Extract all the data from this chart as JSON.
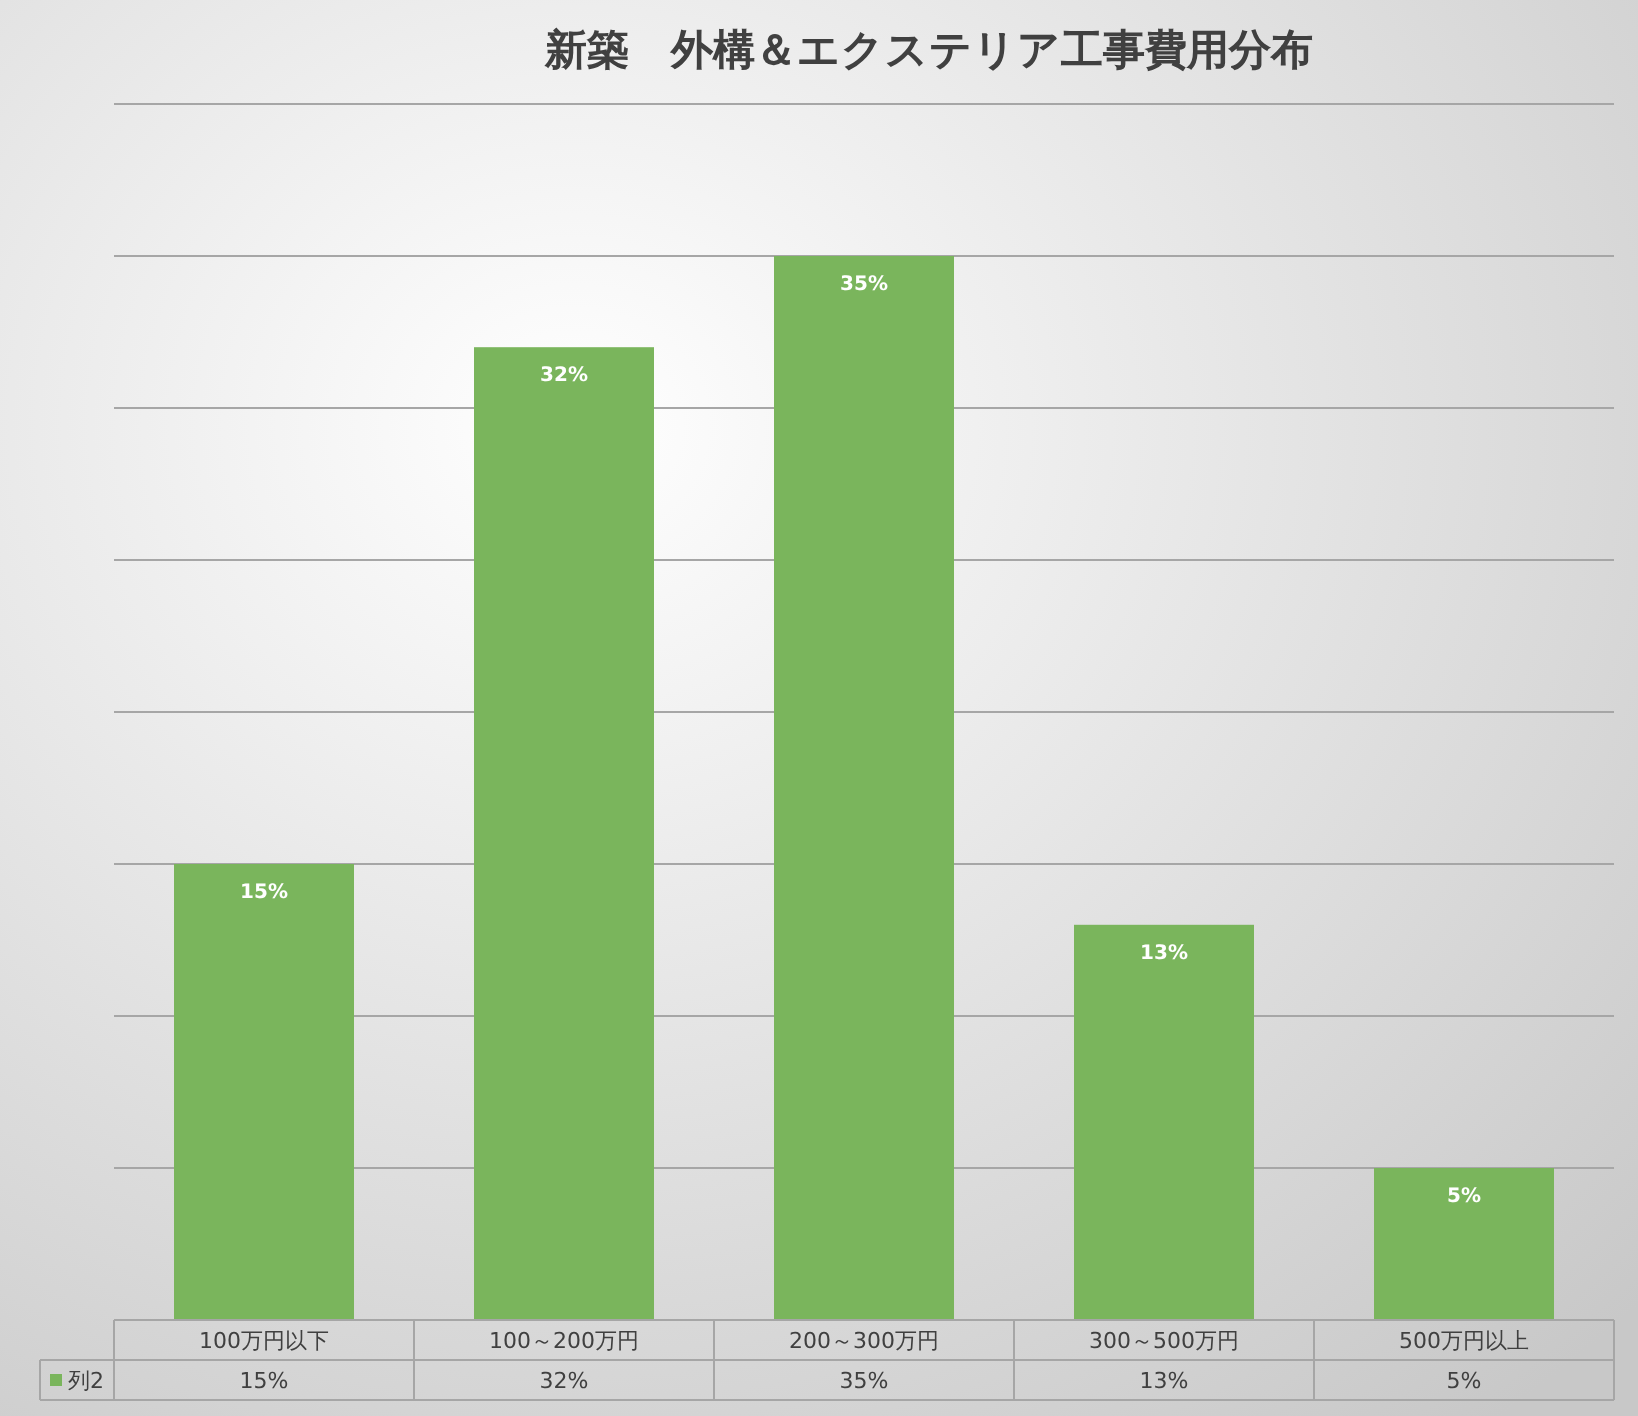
{
  "chart_data": {
    "type": "bar",
    "title": "新築　外構＆エクステリア工事費用分布",
    "categories": [
      "100万円以下",
      "100～200万円",
      "200～300万円",
      "300～500万円",
      "500万円以上"
    ],
    "series": [
      {
        "name": "列2",
        "color": "#7ab55c",
        "values": [
          15,
          32,
          35,
          13,
          5
        ],
        "value_labels": [
          "15%",
          "32%",
          "35%",
          "13%",
          "5%"
        ]
      }
    ],
    "ylim": [
      0,
      40
    ],
    "yticks": [
      {
        "value": 0,
        "label": null
      },
      {
        "value": 5,
        "label": null
      },
      {
        "value": 10,
        "label": null
      },
      {
        "value": 15,
        "label": null
      },
      {
        "value": 20,
        "label": null
      },
      {
        "value": 25,
        "label": null
      },
      {
        "value": 30,
        "label": null
      },
      {
        "value": 35,
        "label": null
      },
      {
        "value": 40,
        "label": null
      }
    ],
    "grid": "y",
    "legend": "bottom",
    "tick_labels": "x"
  }
}
